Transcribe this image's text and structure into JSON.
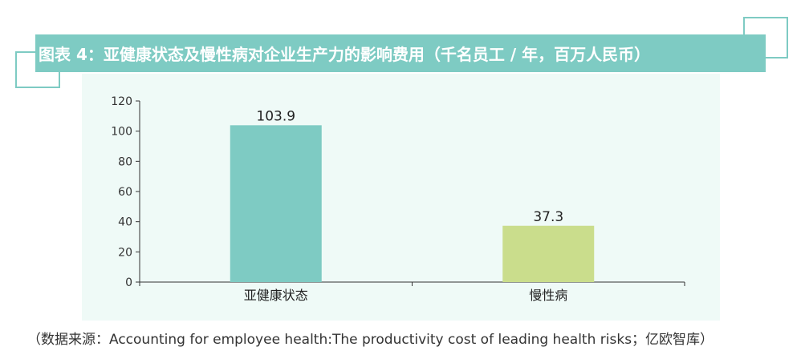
{
  "title": "图表 4：亚健康状态及慢性病对企业生产力的影响费用（千名员工 / 年，百万人民币）",
  "source": "（数据来源：Accounting for employee health:The productivity cost of leading health risks；亿欧智库）",
  "colors": {
    "accent": "#7ecbc3",
    "plot_background": "#effaf7",
    "bar_1": "#7ecbc3",
    "bar_2": "#cadd8c",
    "axis": "#333333"
  },
  "chart_data": {
    "type": "bar",
    "title": "图表 4：亚健康状态及慢性病对企业生产力的影响费用（千名员工 / 年，百万人民币）",
    "categories": [
      "亚健康状态",
      "慢性病"
    ],
    "values": [
      103.9,
      37.3
    ],
    "data_labels": [
      "103.9",
      "37.3"
    ],
    "ylim": [
      0,
      120
    ],
    "yticks": [
      0,
      20,
      40,
      60,
      80,
      100,
      120
    ],
    "xlabel": "",
    "ylabel": "",
    "grid": false,
    "legend": "none"
  }
}
